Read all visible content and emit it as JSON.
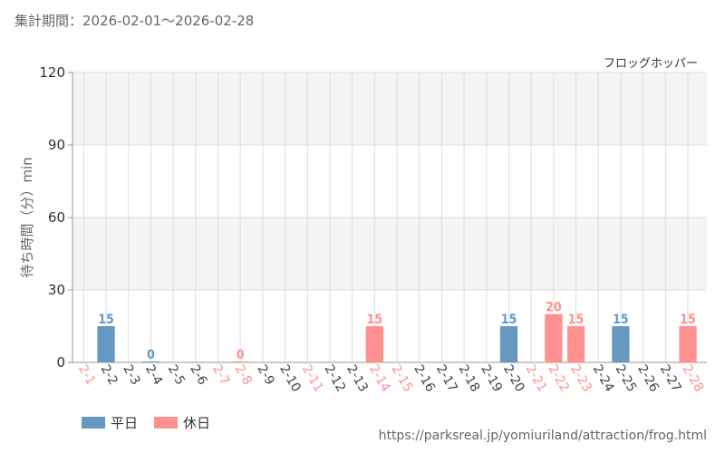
{
  "header": {
    "period": "集計期間：2026-02-01～2026-02-28"
  },
  "colors": {
    "weekday": "#6699c2",
    "holiday": "#ff9090",
    "band": "#f4f4f4",
    "grid": "#dddddd"
  },
  "chart_data": {
    "type": "bar",
    "title": "フロッグホッパー",
    "ylabel": "待ち時間（分）min",
    "ylim": [
      0,
      120
    ],
    "yticks": [
      0,
      30,
      60,
      90,
      120
    ],
    "grid": true,
    "legend_position": "bottom-left",
    "categories": [
      "2-1",
      "2-2",
      "2-3",
      "2-4",
      "2-5",
      "2-6",
      "2-7",
      "2-8",
      "2-9",
      "2-10",
      "2-11",
      "2-12",
      "2-13",
      "2-14",
      "2-15",
      "2-16",
      "2-17",
      "2-18",
      "2-19",
      "2-20",
      "2-21",
      "2-22",
      "2-23",
      "2-24",
      "2-25",
      "2-26",
      "2-27",
      "2-28"
    ],
    "holiday": [
      true,
      false,
      false,
      false,
      false,
      false,
      true,
      true,
      false,
      false,
      true,
      false,
      false,
      true,
      true,
      false,
      false,
      false,
      false,
      false,
      true,
      true,
      true,
      false,
      false,
      false,
      false,
      true
    ],
    "values": [
      null,
      15,
      null,
      0,
      null,
      null,
      null,
      0,
      null,
      null,
      null,
      null,
      null,
      15,
      null,
      null,
      null,
      null,
      null,
      15,
      null,
      20,
      15,
      null,
      15,
      null,
      null,
      15
    ],
    "series": [
      {
        "name": "平日"
      },
      {
        "name": "休日"
      }
    ]
  },
  "footer": {
    "source": "https://parksreal.jp/yomiuriland/attraction/frog.html"
  }
}
